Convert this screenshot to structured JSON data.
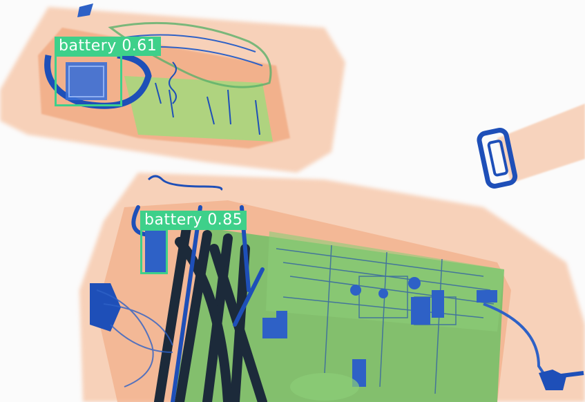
{
  "detections": [
    {
      "label": "battery",
      "score": "0.61",
      "color": "#3ed08a"
    },
    {
      "label": "battery",
      "score": "0.85",
      "color": "#3ed08a"
    }
  ],
  "palette": {
    "background": "#fbfbfb",
    "organic": "#f3a67c",
    "mixed": "#7ec96a",
    "metal": "#1e4fb8",
    "dense": "#1c2a3a"
  }
}
